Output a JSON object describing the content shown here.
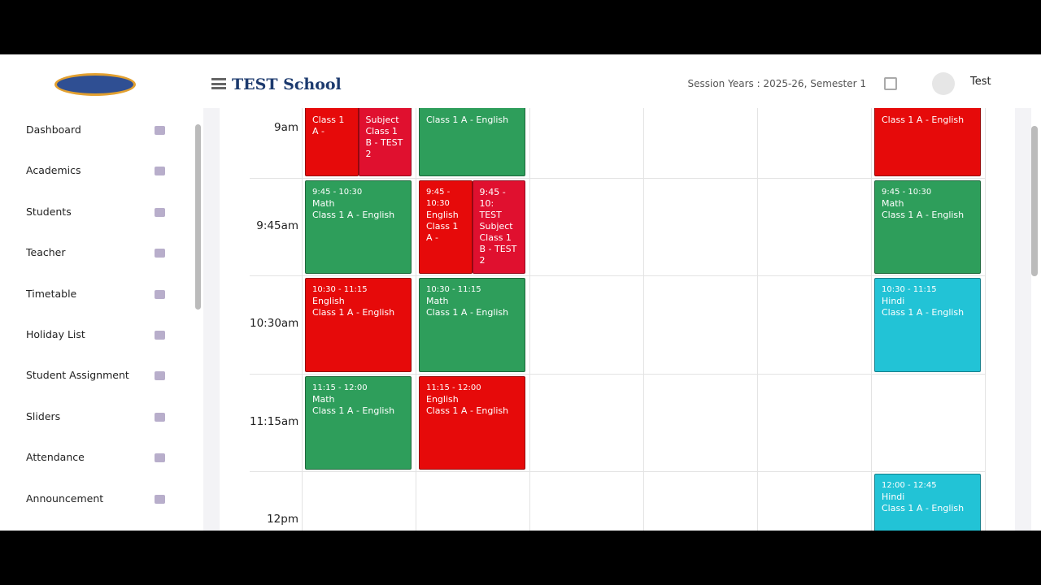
{
  "header": {
    "school": "TEST School",
    "session": "Session Years : 2025-26, Semester 1",
    "user": "Test"
  },
  "sidebar": [
    "Dashboard",
    "Academics",
    "Students",
    "Teacher",
    "Timetable",
    "Holiday List",
    "Student Assignment",
    "Sliders",
    "Attendance",
    "Announcement"
  ],
  "timetable": {
    "rows": [
      {
        "label": "9am",
        "cells": [
          [
            {
              "lines": [
                "Class 1 A -"
              ],
              "color": "#e60a0a"
            },
            {
              "lines": [
                "Subject Class 1 B - TEST 2"
              ],
              "color": "#e0102f"
            }
          ],
          [
            {
              "lines": [
                "Class 1 A - English"
              ],
              "color": "#2e9e5b"
            }
          ],
          [],
          [],
          [],
          [
            {
              "lines": [
                "Class 1 A - English"
              ],
              "color": "#e60a0a"
            }
          ]
        ]
      },
      {
        "label": "9:45am",
        "cells": [
          [
            {
              "lines": [
                "9:45 - 10:30",
                "Math",
                "Class 1 A - English"
              ],
              "color": "#2e9e5b"
            }
          ],
          [
            {
              "lines": [
                "9:45 - 10:30",
                "English",
                "Class 1 A -"
              ],
              "color": "#e60a0a"
            },
            {
              "lines": [
                "9:45 - 10:",
                "TEST Subject Class 1 B - TEST 2"
              ],
              "color": "#e0102f"
            }
          ],
          [],
          [],
          [],
          [
            {
              "lines": [
                "9:45 - 10:30",
                "Math",
                "Class 1 A - English"
              ],
              "color": "#2e9e5b"
            }
          ]
        ]
      },
      {
        "label": "10:30am",
        "cells": [
          [
            {
              "lines": [
                "10:30 - 11:15",
                "English",
                "Class 1 A - English"
              ],
              "color": "#e60a0a"
            }
          ],
          [
            {
              "lines": [
                "10:30 - 11:15",
                "Math",
                "Class 1 A - English"
              ],
              "color": "#2e9e5b"
            }
          ],
          [],
          [],
          [],
          [
            {
              "lines": [
                "10:30 - 11:15",
                "Hindi",
                "Class 1 A - English"
              ],
              "color": "#22c3d6"
            }
          ]
        ]
      },
      {
        "label": "11:15am",
        "cells": [
          [
            {
              "lines": [
                "11:15 - 12:00",
                "Math",
                "Class 1 A - English"
              ],
              "color": "#2e9e5b"
            }
          ],
          [
            {
              "lines": [
                "11:15 - 12:00",
                "English",
                "Class 1 A - English"
              ],
              "color": "#e60a0a"
            }
          ],
          [],
          [],
          [],
          []
        ]
      },
      {
        "label": "12pm",
        "cells": [
          [],
          [],
          [],
          [],
          [],
          [
            {
              "lines": [
                "12:00 - 12:45",
                "Hindi",
                "Class 1 A - English"
              ],
              "color": "#22c3d6"
            }
          ]
        ]
      }
    ]
  }
}
